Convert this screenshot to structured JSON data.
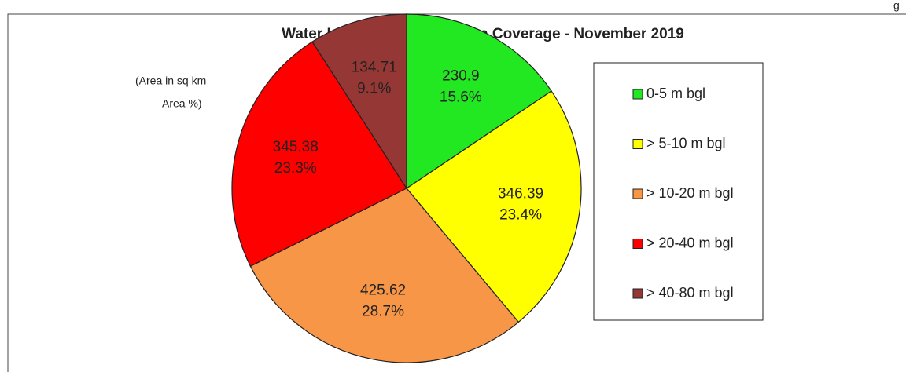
{
  "chart_data": {
    "type": "pie",
    "title": "Water Level  Depth Zone  Area Coverage  -  November  2019",
    "annotation": [
      "(Area in sq km",
      "Area  %)"
    ],
    "corner_text": "g",
    "categories": [
      "0-5 m bgl",
      "> 5-10 m bgl",
      "> 10-20 m bgl",
      "> 20-40 m bgl",
      "> 40-80 m bgl"
    ],
    "values": [
      230.9,
      346.39,
      425.62,
      345.38,
      134.71
    ],
    "percent_labels": [
      "15.6%",
      "23.4%",
      "28.7%",
      "23.3%",
      "9.1%"
    ],
    "colors": [
      "#22e822",
      "#ffff00",
      "#f79646",
      "#ff0000",
      "#953735"
    ],
    "legend": "right"
  }
}
